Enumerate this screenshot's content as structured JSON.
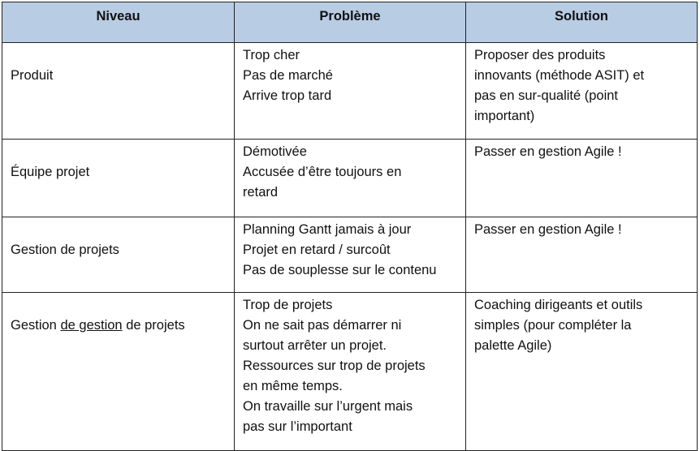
{
  "headers": [
    "Niveau",
    "Problème",
    "Solution"
  ],
  "rows": [
    {
      "niveau": [
        "Produit"
      ],
      "probleme": [
        "Trop cher",
        "Pas de marché",
        "Arrive trop tard"
      ],
      "solution": [
        "Proposer des produits",
        "innovants (méthode ASIT) et",
        "pas en sur-qualité (point",
        "important)"
      ]
    },
    {
      "niveau": [
        "Équipe projet"
      ],
      "probleme": [
        "Démotivée",
        "Accusée d’être toujours en",
        "retard"
      ],
      "solution": [
        "Passer en gestion Agile !"
      ]
    },
    {
      "niveau": [
        "Gestion de projets"
      ],
      "probleme": [
        "Planning Gantt jamais à jour",
        "Projet en retard / surcoût",
        "Pas de souplesse sur le contenu"
      ],
      "solution": [
        "Passer en gestion Agile !"
      ]
    },
    {
      "niveau": [
        "Gestion ",
        "de gestion",
        " de projets"
      ],
      "probleme": [
        "Trop de projets",
        "On ne sait pas démarrer ni",
        "surtout arrêter un projet.",
        "Ressources sur trop de projets",
        "en même temps.",
        "On travaille sur l’urgent mais",
        "pas sur l’important"
      ],
      "solution": [
        "Coaching dirigeants et outils",
        "simples (pour compléter la",
        "palette Agile)"
      ]
    }
  ],
  "colors": {
    "header_bg": "#b8cce4",
    "border": "#222222"
  }
}
